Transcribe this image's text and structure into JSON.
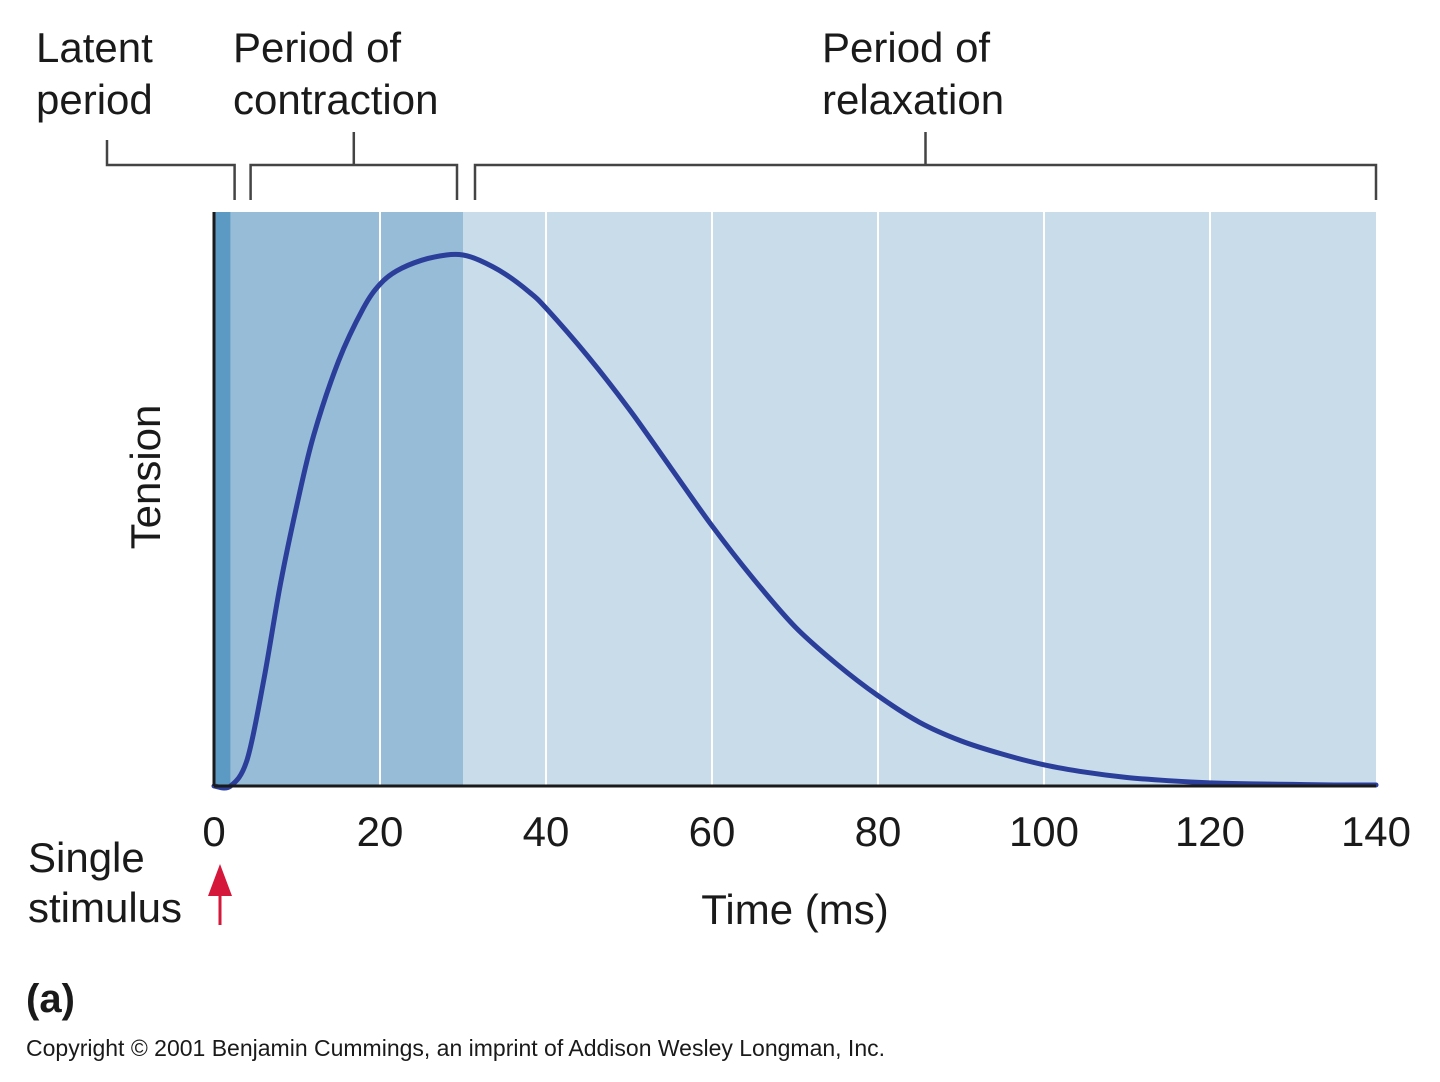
{
  "chart_data": {
    "type": "line",
    "title": "",
    "xlabel": "Time (ms)",
    "ylabel": "Tension",
    "xlim": [
      0,
      140
    ],
    "ylim": [
      0,
      1
    ],
    "x_ticks": [
      0,
      20,
      40,
      60,
      80,
      100,
      120,
      140
    ],
    "x_tick_labels": [
      "0",
      "20",
      "40",
      "60",
      "80",
      "100",
      "120",
      "140"
    ],
    "grid": "vertical",
    "series": [
      {
        "x": [
          0,
          2,
          4,
          6,
          8,
          10,
          12,
          15,
          18,
          20,
          22,
          25,
          28,
          30,
          32,
          35,
          38,
          40,
          45,
          50,
          55,
          60,
          65,
          70,
          75,
          80,
          85,
          90,
          95,
          100,
          105,
          110,
          115,
          120,
          125,
          130,
          135,
          140
        ],
        "y": [
          0,
          0.0,
          0.05,
          0.2,
          0.38,
          0.53,
          0.66,
          0.8,
          0.9,
          0.945,
          0.97,
          0.99,
          1.0,
          1.0,
          0.99,
          0.965,
          0.93,
          0.9,
          0.81,
          0.71,
          0.6,
          0.49,
          0.39,
          0.3,
          0.23,
          0.17,
          0.12,
          0.085,
          0.06,
          0.04,
          0.026,
          0.016,
          0.01,
          0.006,
          0.004,
          0.003,
          0.002,
          0.002
        ]
      }
    ],
    "phases": [
      {
        "label_lines": [
          "Latent",
          "period"
        ],
        "x_start": 0,
        "x_end": 2,
        "color": "#5c9ac3"
      },
      {
        "label_lines": [
          "Period of",
          "contraction"
        ],
        "x_start": 2,
        "x_end": 30,
        "color": "#97bcd8"
      },
      {
        "label_lines": [
          "Period of",
          "relaxation"
        ],
        "x_start": 30,
        "x_end": 140,
        "color": "#c8dcea"
      }
    ],
    "annotations": {
      "stimulus_lines": [
        "Single",
        "stimulus"
      ],
      "stimulus_x": 0
    },
    "colors": {
      "curve": "#2b3e99",
      "stimulus_arrow": "#d4173a",
      "gridline": "#ffffff",
      "axis": "#1a1a1a",
      "bracket": "#444444"
    }
  },
  "figure": {
    "panel_label": "(a)",
    "copyright": "Copyright © 2001 Benjamin Cummings, an imprint of Addison Wesley Longman, Inc."
  }
}
